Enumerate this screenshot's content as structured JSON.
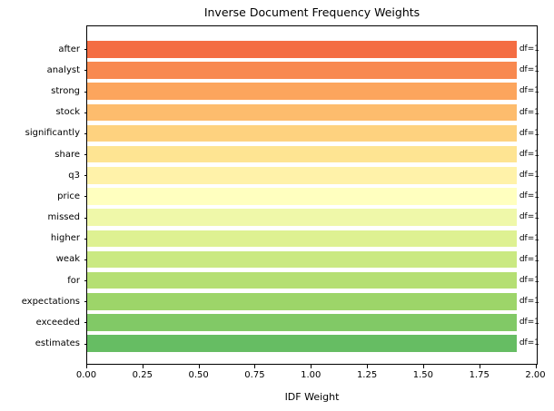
{
  "chart_data": {
    "type": "bar",
    "orientation": "horizontal",
    "title": "Inverse Document Frequency Weights",
    "xlabel": "IDF Weight",
    "ylabel": "",
    "categories": [
      "after",
      "analyst",
      "strong",
      "stock",
      "significantly",
      "share",
      "q3",
      "price",
      "missed",
      "higher",
      "weak",
      "for",
      "expectations",
      "exceeded",
      "estimates"
    ],
    "values": [
      1.92,
      1.92,
      1.92,
      1.92,
      1.92,
      1.92,
      1.92,
      1.92,
      1.92,
      1.92,
      1.92,
      1.92,
      1.92,
      1.92,
      1.92
    ],
    "bar_labels": [
      "df=1",
      "df=1",
      "df=1",
      "df=1",
      "df=1",
      "df=1",
      "df=1",
      "df=1",
      "df=1",
      "df=1",
      "df=1",
      "df=1",
      "df=1",
      "df=1",
      "df=1"
    ],
    "bar_colors": [
      "#f46d43",
      "#f88950",
      "#fca55d",
      "#fdbc6d",
      "#fed27f",
      "#fee492",
      "#fff2a9",
      "#ffffbf",
      "#eff8a9",
      "#def192",
      "#cae982",
      "#b5df73",
      "#9dd569",
      "#81c966",
      "#66bd63"
    ],
    "colormap": "RdYlGn",
    "xlim": [
      0,
      2.01
    ],
    "xticks": [
      {
        "value": 0.0,
        "label": "0.00"
      },
      {
        "value": 0.25,
        "label": "0.25"
      },
      {
        "value": 0.5,
        "label": "0.50"
      },
      {
        "value": 0.75,
        "label": "0.75"
      },
      {
        "value": 1.0,
        "label": "1.00"
      },
      {
        "value": 1.25,
        "label": "1.25"
      },
      {
        "value": 1.5,
        "label": "1.50"
      },
      {
        "value": 1.75,
        "label": "1.75"
      },
      {
        "value": 2.0,
        "label": "2.00"
      }
    ],
    "grid": false,
    "legend": false,
    "spine_color": "#000000",
    "background_color": "#ffffff"
  }
}
